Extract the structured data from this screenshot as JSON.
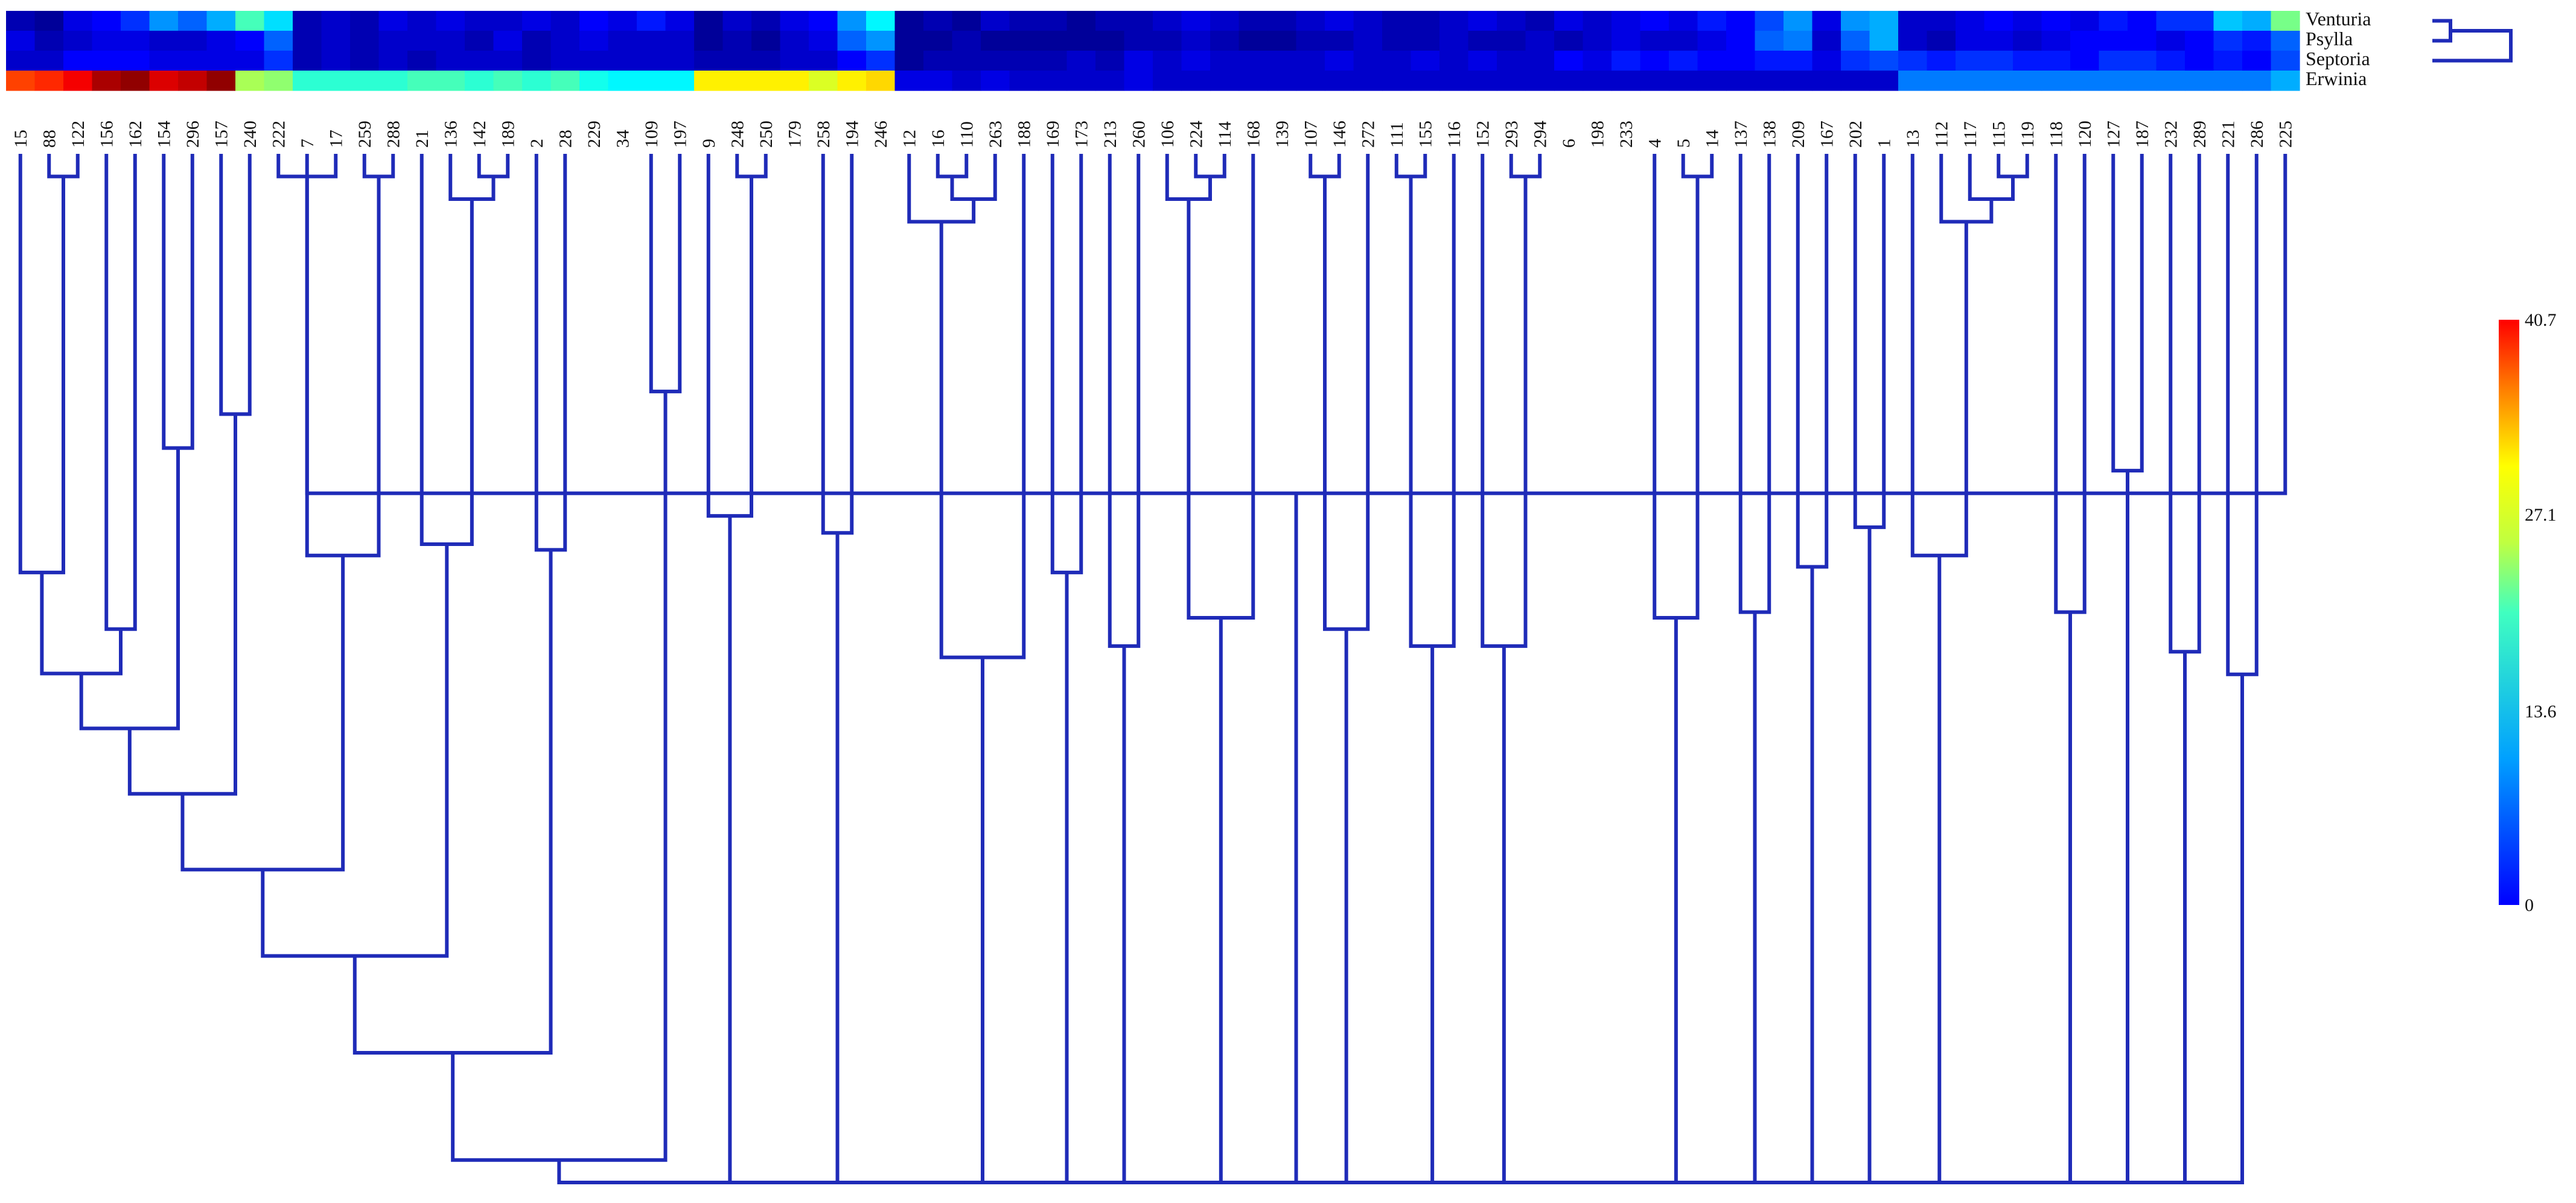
{
  "chart_data": {
    "type": "heatmap",
    "title": "",
    "rows": [
      "Venturia",
      "Psylla",
      "Septoria",
      "Erwinia"
    ],
    "columns": [
      "15",
      "88",
      "122",
      "156",
      "162",
      "154",
      "296",
      "157",
      "240",
      "222",
      "7",
      "17",
      "259",
      "288",
      "21",
      "136",
      "142",
      "189",
      "2",
      "28",
      "229",
      "34",
      "109",
      "197",
      "9",
      "248",
      "250",
      "179",
      "258",
      "194",
      "246",
      "12",
      "16",
      "110",
      "263",
      "188",
      "169",
      "173",
      "213",
      "260",
      "106",
      "224",
      "114",
      "168",
      "139",
      "107",
      "146",
      "272",
      "111",
      "155",
      "116",
      "152",
      "293",
      "294",
      "6",
      "198",
      "233",
      "4",
      "5",
      "14",
      "137",
      "138",
      "209",
      "167",
      "202",
      "1",
      "13",
      "112",
      "117",
      "115",
      "119",
      "118",
      "120",
      "127",
      "187",
      "232",
      "289",
      "221",
      "286",
      "225"
    ],
    "values": [
      [
        2,
        1,
        4,
        5,
        7,
        11,
        9,
        12,
        18,
        14,
        2,
        3,
        2,
        4,
        3,
        4,
        3,
        3,
        4,
        3,
        5,
        4,
        6,
        4,
        1,
        3,
        2,
        4,
        5,
        11,
        15,
        1,
        2,
        1,
        3,
        2,
        2,
        1,
        2,
        2,
        3,
        4,
        3,
        2,
        2,
        3,
        4,
        3,
        2,
        2,
        3,
        4,
        3,
        2,
        4,
        3,
        4,
        5,
        4,
        6,
        5,
        8,
        11,
        4,
        11,
        12,
        3,
        3,
        4,
        5,
        4,
        5,
        4,
        6,
        5,
        7,
        7,
        13,
        12,
        20
      ],
      [
        4,
        2,
        3,
        4,
        4,
        3,
        3,
        4,
        5,
        9,
        2,
        3,
        2,
        3,
        3,
        3,
        2,
        4,
        2,
        3,
        4,
        3,
        3,
        3,
        1,
        2,
        1,
        3,
        4,
        9,
        11,
        1,
        1,
        2,
        1,
        1,
        1,
        1,
        1,
        2,
        2,
        3,
        2,
        1,
        1,
        2,
        2,
        3,
        2,
        2,
        3,
        2,
        2,
        3,
        2,
        3,
        4,
        3,
        3,
        4,
        5,
        9,
        10,
        3,
        9,
        12,
        3,
        2,
        4,
        4,
        3,
        4,
        5,
        5,
        5,
        4,
        5,
        7,
        6,
        9
      ],
      [
        3,
        3,
        5,
        5,
        5,
        4,
        4,
        4,
        4,
        7,
        2,
        3,
        2,
        3,
        2,
        3,
        3,
        3,
        2,
        3,
        3,
        3,
        3,
        3,
        2,
        2,
        2,
        3,
        3,
        5,
        7,
        1,
        2,
        2,
        2,
        2,
        2,
        3,
        2,
        4,
        3,
        4,
        3,
        3,
        3,
        3,
        4,
        3,
        3,
        4,
        3,
        4,
        3,
        3,
        5,
        4,
        6,
        5,
        6,
        5,
        5,
        6,
        6,
        4,
        7,
        8,
        7,
        6,
        7,
        7,
        6,
        6,
        5,
        7,
        7,
        6,
        5,
        6,
        5,
        8
      ],
      [
        33,
        34,
        36,
        39,
        40,
        37,
        38,
        40,
        22,
        21,
        17,
        17,
        17,
        17,
        18,
        18,
        17,
        18,
        17,
        18,
        16,
        15,
        15,
        15,
        26,
        26,
        26,
        26,
        24,
        26,
        27,
        4,
        4,
        3,
        4,
        3,
        3,
        3,
        3,
        4,
        3,
        3,
        3,
        3,
        3,
        3,
        3,
        3,
        3,
        3,
        3,
        3,
        3,
        3,
        3,
        3,
        3,
        3,
        3,
        3,
        3,
        3,
        3,
        3,
        3,
        3,
        10,
        10,
        10,
        10,
        10,
        10,
        10,
        10,
        10,
        10,
        10,
        10,
        10,
        12
      ]
    ],
    "colorbar": {
      "min": 0,
      "max": 40.7,
      "ticks": [
        "0",
        "13.6",
        "27.1",
        "40.7"
      ]
    },
    "colormap": "jet",
    "line_color": "#1f2bb8",
    "column_dendrogram": [
      [
        0,
        "L15",
        [
          "L88",
          "L122"
        ],
        0.74
      ],
      [
        0,
        "L156",
        "L162",
        0.84
      ],
      [
        0,
        "L154",
        "L296",
        0.52
      ],
      [
        0,
        "L157",
        "L240",
        0.46
      ],
      [
        0,
        "L7",
        [
          "L259",
          "L288"
        ],
        0.71
      ],
      [
        0,
        "L21",
        [
          "L136",
          [
            "L142",
            "L189"
          ]
        ],
        0.69
      ],
      [
        0,
        "L2",
        "L28",
        0.7
      ],
      [
        0,
        "L109",
        "L197",
        0.42
      ],
      [
        0,
        "L9",
        [
          "L248",
          "L250"
        ],
        0.64
      ],
      [
        0,
        "L258",
        "L194",
        0.67
      ],
      [
        0,
        [
          "L12",
          [
            [
              "L16",
              "L110"
            ],
            "L263"
          ]
        ],
        "L188",
        0.89
      ],
      [
        0,
        "L169",
        "L173",
        0.74
      ],
      [
        0,
        "L213",
        "L260",
        0.87
      ],
      [
        0,
        [
          "L106",
          [
            "L224",
            "L114"
          ]
        ],
        "L168",
        0.82
      ],
      [
        0,
        [
          "L107",
          "L146"
        ],
        "L272",
        0.84
      ],
      [
        0,
        [
          "L111",
          "L155"
        ],
        "L116",
        0.87
      ],
      [
        0,
        "L152",
        [
          "L293",
          "L294"
        ],
        0.87
      ],
      [
        0,
        "L4",
        [
          "L5",
          "L14"
        ],
        0.82
      ],
      [
        0,
        "L137",
        "L138",
        0.81
      ],
      [
        0,
        "L209",
        "L167",
        0.73
      ],
      [
        0,
        "L202",
        "L1",
        0.66
      ],
      [
        0,
        "L13",
        [
          "L112",
          [
            "L117",
            [
              "L115",
              "L119"
            ]
          ]
        ],
        0.71
      ],
      [
        0,
        "L118",
        "L120",
        0.81
      ],
      [
        0,
        "L127",
        "L187",
        0.56
      ],
      [
        0,
        "L232",
        "L289",
        0.88
      ],
      [
        0,
        "L221",
        "L286",
        0.92
      ],
      [
        0,
        "L225",
        [
          "L222",
          "L17"
        ],
        0.6
      ]
    ],
    "row_dendrogram": [
      [
        "Venturia",
        "Psylla"
      ],
      "Septoria"
    ]
  }
}
